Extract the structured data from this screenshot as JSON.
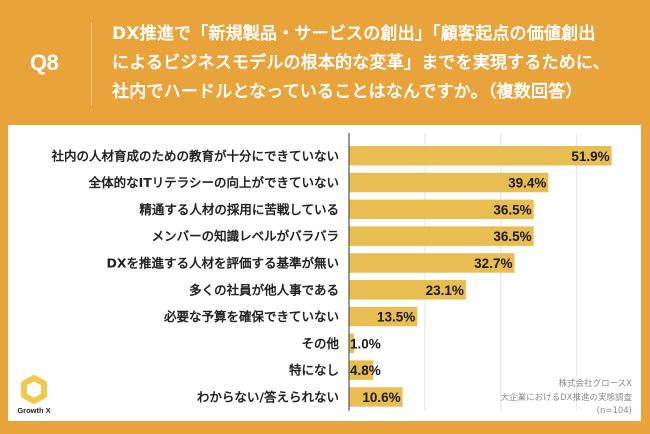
{
  "header": {
    "question_number": "Q8",
    "title_lines": [
      "DX推進で「新規製品・サービスの創出」「顧客起点の価値創出",
      "によるビジネスモデルの根本的な変革」までを実現するために、",
      "社内でハードルとなっていることはなんですか。（複数回答）"
    ]
  },
  "colors": {
    "background": "#E8A33A",
    "panel": "#FFFFFF",
    "bar": "#E8BE52",
    "logo": "#F2C94C",
    "gridline": "#E2E2E2",
    "axis": "#555555"
  },
  "source": {
    "lines": [
      "株式会社グロースX",
      "大企業におけるDX推進の実態調査",
      "(n=104)"
    ]
  },
  "logo": {
    "text": "Growth X",
    "icon": "hexagon-ring-icon"
  },
  "chart_data": {
    "type": "bar",
    "orientation": "horizontal",
    "title": "DX推進で「新規製品・サービスの創出」「顧客起点の価値創出によるビジネスモデルの根本的な変革」までを実現するために、社内でハードルとなっていることはなんですか。（複数回答）",
    "xlabel": "",
    "ylabel": "",
    "unit": "%",
    "xlim": [
      0,
      60
    ],
    "gridlines_at": [
      15,
      30,
      45
    ],
    "grid": true,
    "legend": "none",
    "categories": [
      "社内の人材育成のための教育が十分にできていない",
      "全体的なITリテラシーの向上ができていない",
      "精通する人材の採用に苦戦している",
      "メンバーの知識レベルがバラバラ",
      "DXを推進する人材を評価する基準が無い",
      "多くの社員が他人事である",
      "必要な予算を確保できていない",
      "その他",
      "特になし",
      "わからない/答えられない"
    ],
    "values": [
      51.9,
      39.4,
      36.5,
      36.5,
      32.7,
      23.1,
      13.5,
      1.0,
      4.8,
      10.6
    ],
    "value_labels": [
      "51.9%",
      "39.4%",
      "36.5%",
      "36.5%",
      "32.7%",
      "23.1%",
      "13.5%",
      "1.0%",
      "4.8%",
      "10.6%"
    ]
  }
}
